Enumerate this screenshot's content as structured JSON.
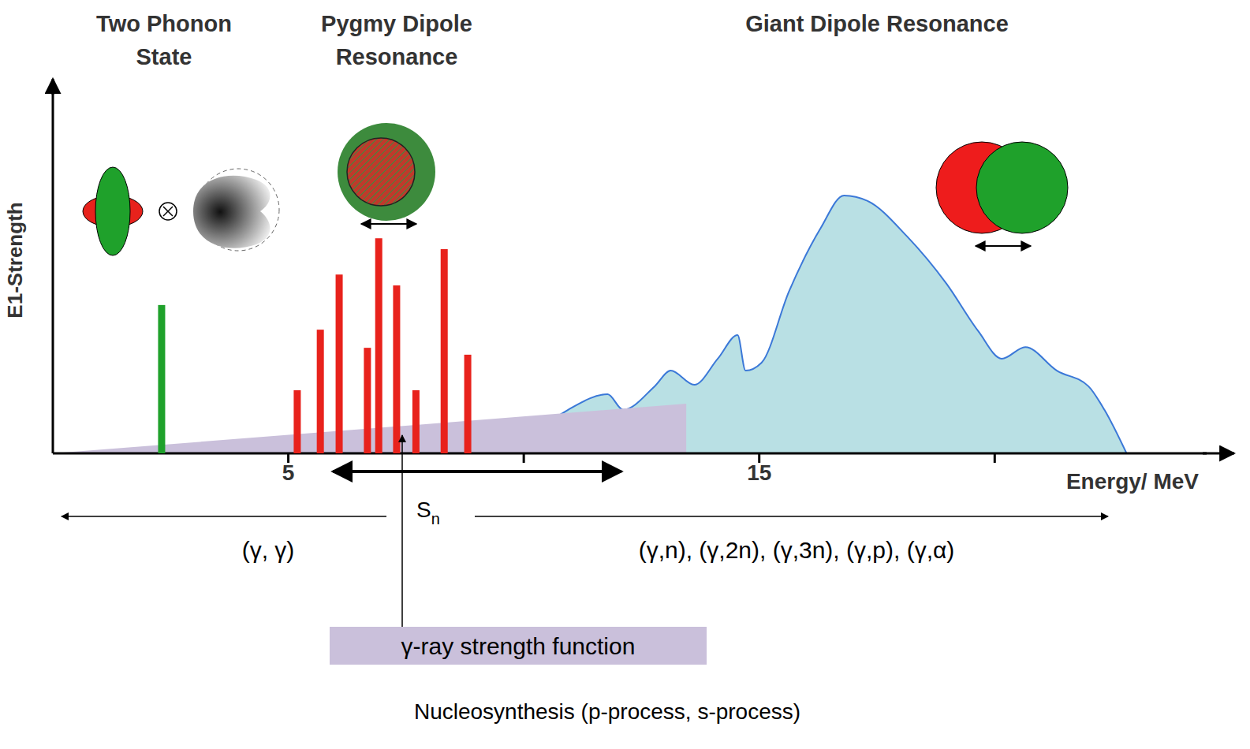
{
  "chart_data": {
    "type": "bar",
    "xlabel": "Energy/ MeV",
    "ylabel": "E1-Strength",
    "xlim": [
      0,
      24.5
    ],
    "ylim": [
      0,
      100
    ],
    "xticks": [
      5,
      15
    ],
    "minor_xticks": [
      10,
      20
    ],
    "tick_labels": "x",
    "grid": false,
    "series": [
      {
        "name": "Two Phonon State",
        "type": "bar",
        "color": "#1fa12b",
        "x": [
          2.31
        ],
        "values": [
          40.9
        ]
      },
      {
        "name": "Pygmy Dipole Resonance",
        "type": "bar",
        "color": "#e8221c",
        "x": [
          5.19,
          5.68,
          6.08,
          6.68,
          6.92,
          7.3,
          7.71,
          8.31,
          8.81
        ],
        "values": [
          17.4,
          34.1,
          49.3,
          29.1,
          59.3,
          46.3,
          17.4,
          56.3,
          27.2
        ]
      },
      {
        "name": "Giant Dipole Resonance",
        "type": "area",
        "color": "#b9e0e4",
        "x": [
          9.77,
          10.94,
          11.78,
          12.11,
          12.78,
          13.12,
          13.62,
          14.12,
          14.54,
          14.71,
          15.05,
          15.63,
          16.3,
          16.8,
          17.3,
          18.14,
          18.98,
          19.65,
          20.15,
          20.65,
          21.32,
          21.99,
          22.33,
          22.8
        ],
        "values": [
          0,
          12.0,
          16.3,
          12.0,
          18.5,
          22.8,
          18.9,
          26.1,
          32.6,
          22.8,
          25.0,
          44.6,
          62.0,
          71.1,
          69.6,
          59.8,
          46.7,
          33.7,
          26.1,
          29.3,
          22.8,
          18.5,
          12.0,
          0
        ]
      },
      {
        "name": "γ-ray strength function",
        "type": "area",
        "color": "#cac0db",
        "x": [
          0,
          13.45,
          13.45
        ],
        "values": [
          0,
          13.7,
          0
        ]
      }
    ],
    "annotations": {
      "threshold": "Sn",
      "below_threshold": "(γ, γ)",
      "above_threshold": "(γ,n), (γ,2n), (γ,3n), (γ,p), (γ,α)",
      "application": "Nucleosynthesis (p-process, s-process)"
    }
  }
}
